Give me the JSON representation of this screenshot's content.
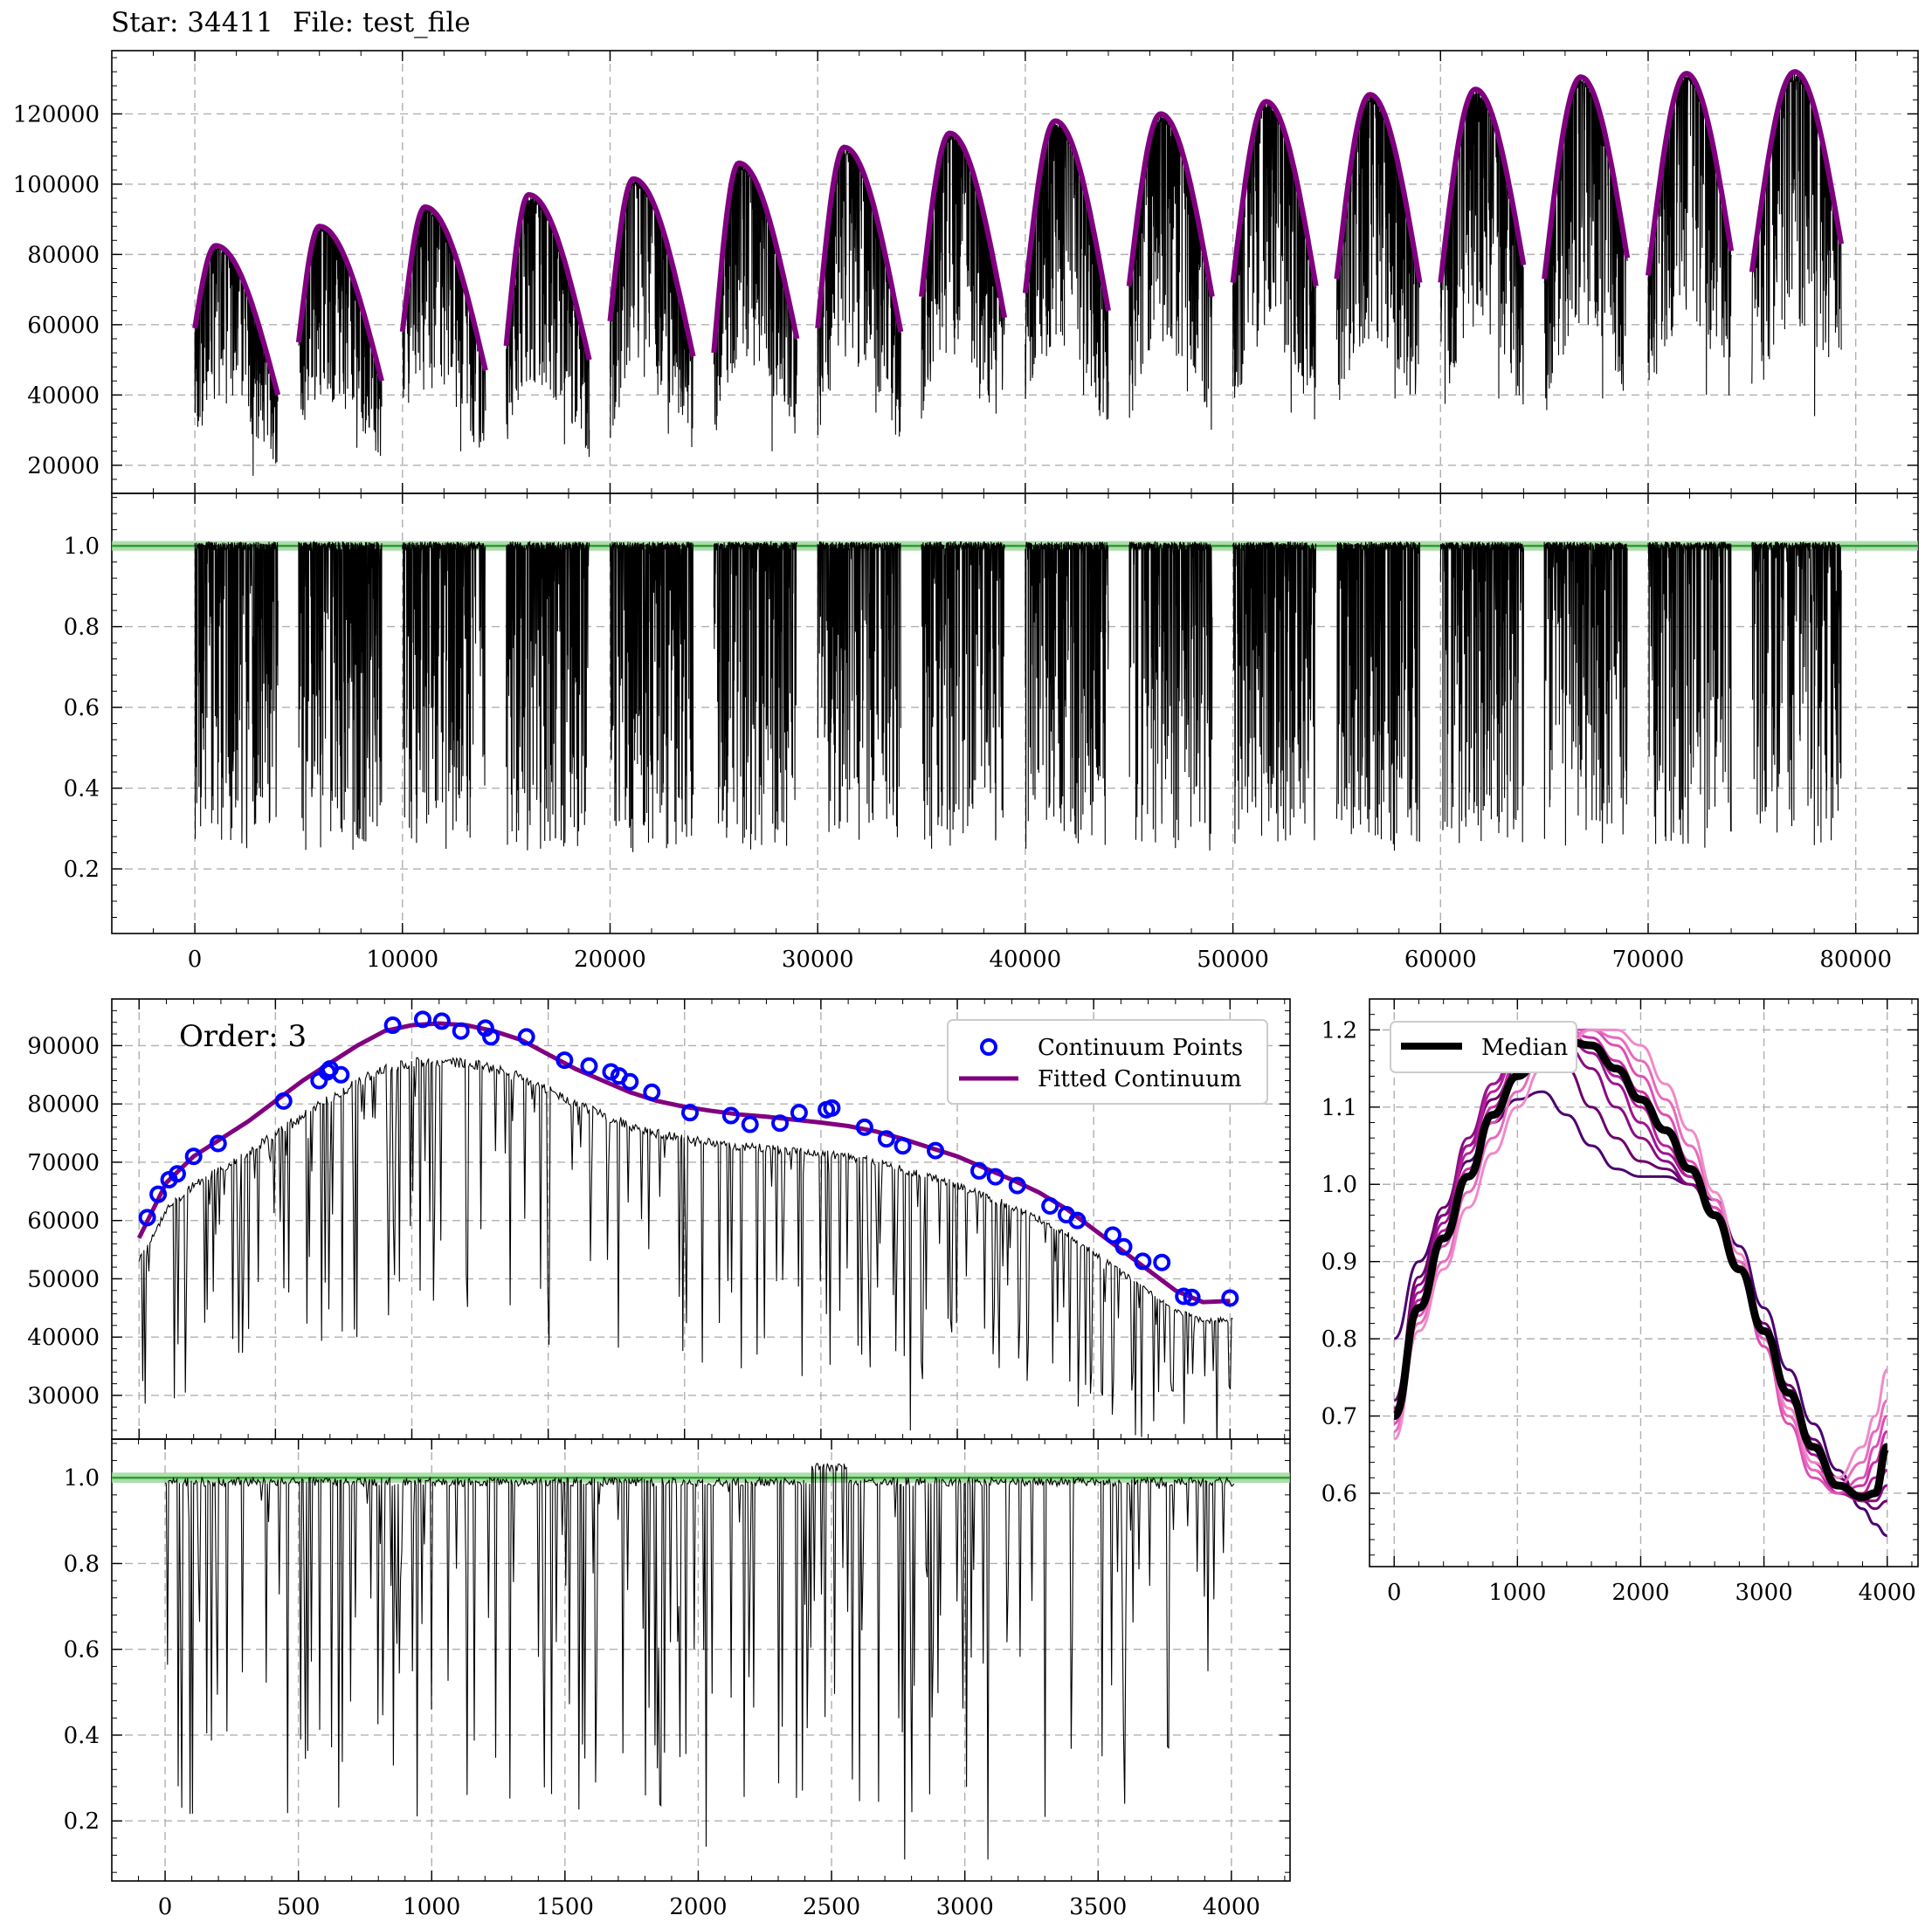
{
  "figure": {
    "star_label": "Star: 34411",
    "file_label": "File: test_file"
  },
  "colors": {
    "spectrum": "#000000",
    "continuum": "#800080",
    "unity_line": "#2ca02c",
    "unity_band": "#98d498",
    "points": "#0000ff",
    "grid": "#b0b0b0",
    "median": "#000000"
  },
  "chart_data": [
    {
      "id": "full-raw",
      "type": "line",
      "title": "",
      "xlim": [
        -4000,
        83000
      ],
      "ylim": [
        12000,
        138000
      ],
      "x_ticks": [
        0,
        10000,
        20000,
        30000,
        40000,
        50000,
        60000,
        70000,
        80000
      ],
      "y_ticks": [
        20000,
        40000,
        60000,
        80000,
        100000,
        120000
      ],
      "grid": true,
      "orders": [
        {
          "x": [
            0,
            4000
          ],
          "start": 59000,
          "peak": 82500,
          "end": 40000,
          "peak_at": 0.25,
          "min": 17000
        },
        {
          "x": [
            5000,
            9000
          ],
          "start": 55000,
          "peak": 88000,
          "end": 44000,
          "peak_at": 0.25,
          "min": 25000
        },
        {
          "x": [
            10000,
            14000
          ],
          "start": 58000,
          "peak": 93500,
          "end": 47000,
          "peak_at": 0.27,
          "min": 24000
        },
        {
          "x": [
            15000,
            19000
          ],
          "start": 54000,
          "peak": 97000,
          "end": 50000,
          "peak_at": 0.27,
          "min": 26000
        },
        {
          "x": [
            20000,
            24000
          ],
          "start": 61000,
          "peak": 101500,
          "end": 51000,
          "peak_at": 0.28,
          "min": 29000
        },
        {
          "x": [
            25000,
            29000
          ],
          "start": 52000,
          "peak": 106000,
          "end": 56000,
          "peak_at": 0.3,
          "min": 24000
        },
        {
          "x": [
            30000,
            34000
          ],
          "start": 59000,
          "peak": 110500,
          "end": 58000,
          "peak_at": 0.32,
          "min": 35000
        },
        {
          "x": [
            35000,
            39000
          ],
          "start": 68000,
          "peak": 114500,
          "end": 62000,
          "peak_at": 0.34,
          "min": 39000
        },
        {
          "x": [
            40000,
            44000
          ],
          "start": 69000,
          "peak": 118000,
          "end": 64000,
          "peak_at": 0.36,
          "min": 40000
        },
        {
          "x": [
            45000,
            49000
          ],
          "start": 71000,
          "peak": 120000,
          "end": 68000,
          "peak_at": 0.38,
          "min": 41000
        },
        {
          "x": [
            50000,
            54000
          ],
          "start": 72000,
          "peak": 123500,
          "end": 71000,
          "peak_at": 0.4,
          "min": 35000
        },
        {
          "x": [
            55000,
            59000
          ],
          "start": 73000,
          "peak": 125500,
          "end": 72000,
          "peak_at": 0.4,
          "min": 39000
        },
        {
          "x": [
            60000,
            64000
          ],
          "start": 72000,
          "peak": 127000,
          "end": 77000,
          "peak_at": 0.42,
          "min": 39000
        },
        {
          "x": [
            65000,
            69000
          ],
          "start": 73000,
          "peak": 130500,
          "end": 79000,
          "peak_at": 0.44,
          "min": 39000
        },
        {
          "x": [
            70000,
            74000
          ],
          "start": 74000,
          "peak": 131500,
          "end": 81000,
          "peak_at": 0.46,
          "min": 40000
        },
        {
          "x": [
            75000,
            79300
          ],
          "start": 75000,
          "peak": 132000,
          "end": 83000,
          "peak_at": 0.48,
          "min": 34000
        }
      ]
    },
    {
      "id": "full-normalized",
      "type": "line",
      "title": "",
      "xlim": [
        -4000,
        83000
      ],
      "ylim": [
        0.04,
        1.13
      ],
      "x_ticks": [
        0,
        10000,
        20000,
        30000,
        40000,
        50000,
        60000,
        70000,
        80000
      ],
      "x_tick_labels": [
        "0",
        "10000",
        "20000",
        "30000",
        "40000",
        "50000",
        "60000",
        "70000",
        "80000"
      ],
      "y_ticks": [
        0.2,
        0.4,
        0.6,
        0.8,
        1.0
      ],
      "y_tick_labels": [
        "0.2",
        "0.4",
        "0.6",
        "0.8",
        "1.0"
      ],
      "reference_line": 1.0,
      "grid": true
    },
    {
      "id": "order-raw",
      "type": "line",
      "title": "",
      "annotation": "Order: 3",
      "xlim": [
        -100,
        4220
      ],
      "ylim": [
        22500,
        98000
      ],
      "x_ticks": [
        0,
        500,
        1000,
        1500,
        2000,
        2500,
        3000,
        3500,
        4000
      ],
      "y_ticks": [
        30000,
        40000,
        50000,
        60000,
        70000,
        80000,
        90000
      ],
      "y_tick_labels": [
        "30000",
        "40000",
        "50000",
        "60000",
        "70000",
        "80000",
        "90000"
      ],
      "legend_placement": "upper right",
      "series": [
        {
          "name": "Continuum Points",
          "kind": "scatter",
          "x": [
            30,
            70,
            110,
            140,
            200,
            290,
            530,
            660,
            690,
            700,
            740,
            930,
            1040,
            1110,
            1180,
            1270,
            1290,
            1420,
            1560,
            1650,
            1730,
            1760,
            1800,
            1880,
            2020,
            2170,
            2240,
            2350,
            2420,
            2520,
            2540,
            2660,
            2740,
            2800,
            2920,
            3080,
            3140,
            3220,
            3340,
            3400,
            3440,
            3570,
            3610,
            3680,
            3750,
            3830,
            3860,
            4000
          ],
          "y": [
            60500,
            64500,
            67000,
            68000,
            71000,
            73200,
            80500,
            84000,
            85500,
            86000,
            85000,
            93500,
            94500,
            94200,
            92500,
            93000,
            91500,
            91500,
            87500,
            86500,
            85500,
            84800,
            83800,
            82000,
            78500,
            78000,
            76500,
            76700,
            78500,
            79000,
            79300,
            76000,
            74000,
            72800,
            72000,
            68500,
            67500,
            66000,
            62500,
            61000,
            60000,
            57500,
            55500,
            53000,
            52800,
            47000,
            46800,
            46700
          ]
        },
        {
          "name": "Fitted Continuum",
          "kind": "line",
          "x": [
            0,
            100,
            200,
            300,
            400,
            500,
            600,
            700,
            800,
            900,
            1000,
            1100,
            1200,
            1300,
            1400,
            1500,
            1600,
            1700,
            1800,
            1900,
            2000,
            2100,
            2200,
            2300,
            2400,
            2500,
            2600,
            2700,
            2800,
            2900,
            3000,
            3100,
            3200,
            3300,
            3400,
            3500,
            3600,
            3700,
            3800,
            3900,
            4000
          ],
          "y": [
            57000,
            66500,
            71000,
            74000,
            77000,
            80500,
            84000,
            87000,
            90000,
            92500,
            93500,
            93800,
            93500,
            92500,
            91000,
            88500,
            86000,
            84000,
            82000,
            80500,
            79500,
            78800,
            78200,
            77800,
            77300,
            76800,
            76200,
            75300,
            74000,
            72500,
            71000,
            69000,
            67000,
            64800,
            62000,
            58500,
            55000,
            51500,
            48000,
            46000,
            46200
          ]
        }
      ]
    },
    {
      "id": "order-normalized",
      "type": "line",
      "title": "",
      "xlim": [
        -200,
        4220
      ],
      "ylim": [
        0.06,
        1.09
      ],
      "x_ticks": [
        0,
        500,
        1000,
        1500,
        2000,
        2500,
        3000,
        3500,
        4000
      ],
      "x_tick_labels": [
        "0",
        "500",
        "1000",
        "1500",
        "2000",
        "2500",
        "3000",
        "3500",
        "4000"
      ],
      "y_ticks": [
        0.2,
        0.4,
        0.6,
        0.8,
        1.0
      ],
      "y_tick_labels": [
        "0.2",
        "0.4",
        "0.6",
        "0.8",
        "1.0"
      ],
      "reference_line": 1.0,
      "grid": true
    },
    {
      "id": "blaze-shapes",
      "type": "line",
      "title": "",
      "xlim": [
        -200,
        4250
      ],
      "ylim": [
        0.505,
        1.24
      ],
      "x_ticks": [
        0,
        1000,
        2000,
        3000,
        4000
      ],
      "x_tick_labels": [
        "0",
        "1000",
        "2000",
        "3000",
        "4000"
      ],
      "y_ticks": [
        0.6,
        0.7,
        0.8,
        0.9,
        1.0,
        1.1,
        1.2
      ],
      "y_tick_labels": [
        "0.6",
        "0.7",
        "0.8",
        "0.9",
        "1.0",
        "1.1",
        "1.2"
      ],
      "legend_placement": "upper left",
      "x": [
        0,
        200,
        400,
        600,
        800,
        1000,
        1200,
        1400,
        1600,
        1800,
        2000,
        2200,
        2400,
        2600,
        2800,
        3000,
        3200,
        3400,
        3600,
        3800,
        3900,
        4000
      ],
      "series": [
        {
          "name": "Median",
          "color": "#000000",
          "width": 9,
          "y": [
            0.7,
            0.84,
            0.93,
            1.01,
            1.09,
            1.14,
            1.17,
            1.185,
            1.18,
            1.15,
            1.11,
            1.07,
            1.02,
            0.96,
            0.89,
            0.81,
            0.73,
            0.66,
            0.61,
            0.595,
            0.6,
            0.66
          ]
        },
        {
          "name": "",
          "color": "#4b006e",
          "width": 3,
          "y": [
            0.8,
            0.9,
            0.96,
            1.03,
            1.08,
            1.11,
            1.12,
            1.09,
            1.05,
            1.02,
            1.01,
            1.01,
            1.0,
            0.98,
            0.92,
            0.84,
            0.76,
            0.69,
            0.63,
            0.58,
            0.56,
            0.545
          ]
        },
        {
          "name": "",
          "color": "#6a006a",
          "width": 3,
          "y": [
            0.72,
            0.88,
            0.97,
            1.05,
            1.11,
            1.15,
            1.16,
            1.15,
            1.1,
            1.06,
            1.03,
            1.02,
            1.0,
            0.97,
            0.9,
            0.82,
            0.74,
            0.67,
            0.62,
            0.59,
            0.58,
            0.59
          ]
        },
        {
          "name": "",
          "color": "#8a0a82",
          "width": 3,
          "y": [
            0.71,
            0.87,
            0.96,
            1.06,
            1.13,
            1.17,
            1.18,
            1.18,
            1.15,
            1.1,
            1.06,
            1.03,
            1.0,
            0.96,
            0.89,
            0.81,
            0.73,
            0.66,
            0.61,
            0.59,
            0.59,
            0.61
          ]
        },
        {
          "name": "",
          "color": "#a01590",
          "width": 3,
          "y": [
            0.7,
            0.86,
            0.95,
            1.05,
            1.13,
            1.18,
            1.19,
            1.19,
            1.17,
            1.13,
            1.08,
            1.04,
            1.01,
            0.96,
            0.89,
            0.81,
            0.72,
            0.65,
            0.6,
            0.59,
            0.6,
            0.63
          ]
        },
        {
          "name": "",
          "color": "#b8209a",
          "width": 3,
          "y": [
            0.7,
            0.85,
            0.94,
            1.04,
            1.12,
            1.17,
            1.19,
            1.2,
            1.18,
            1.14,
            1.1,
            1.05,
            1.01,
            0.96,
            0.89,
            0.8,
            0.71,
            0.64,
            0.6,
            0.6,
            0.62,
            0.65
          ]
        },
        {
          "name": "",
          "color": "#cc2fa6",
          "width": 3,
          "y": [
            0.69,
            0.84,
            0.93,
            1.02,
            1.1,
            1.16,
            1.19,
            1.2,
            1.19,
            1.16,
            1.12,
            1.07,
            1.02,
            0.96,
            0.89,
            0.79,
            0.7,
            0.63,
            0.6,
            0.61,
            0.64,
            0.68
          ]
        },
        {
          "name": "",
          "color": "#dc4fb4",
          "width": 3,
          "y": [
            0.69,
            0.83,
            0.92,
            1.01,
            1.08,
            1.14,
            1.18,
            1.2,
            1.2,
            1.18,
            1.14,
            1.09,
            1.03,
            0.97,
            0.89,
            0.79,
            0.69,
            0.62,
            0.6,
            0.62,
            0.66,
            0.7
          ]
        },
        {
          "name": "",
          "color": "#e86bbe",
          "width": 3,
          "y": [
            0.68,
            0.82,
            0.9,
            0.99,
            1.06,
            1.12,
            1.17,
            1.19,
            1.2,
            1.19,
            1.16,
            1.11,
            1.05,
            0.98,
            0.9,
            0.8,
            0.7,
            0.63,
            0.61,
            0.64,
            0.68,
            0.72
          ]
        },
        {
          "name": "",
          "color": "#f08ac8",
          "width": 3,
          "y": [
            0.67,
            0.81,
            0.89,
            0.97,
            1.04,
            1.1,
            1.15,
            1.18,
            1.2,
            1.2,
            1.18,
            1.13,
            1.07,
            0.99,
            0.91,
            0.81,
            0.71,
            0.64,
            0.62,
            0.66,
            0.7,
            0.76
          ]
        }
      ]
    }
  ]
}
